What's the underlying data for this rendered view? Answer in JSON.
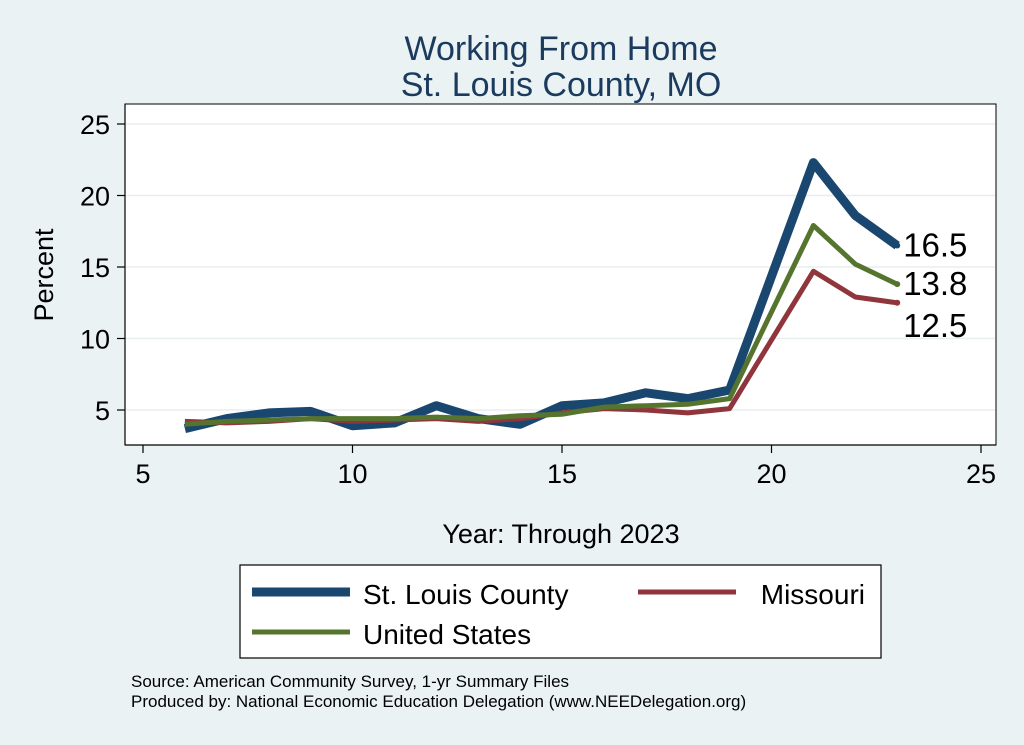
{
  "chart_data": {
    "type": "line",
    "title": "Working From Home",
    "subtitle": "St. Louis County, MO",
    "xlabel": "Year: Through 2023",
    "ylabel": "Percent",
    "xlim": [
      5,
      25
    ],
    "ylim": [
      2.5,
      25
    ],
    "x_ticks": [
      5,
      10,
      15,
      20,
      25
    ],
    "y_ticks": [
      5,
      10,
      15,
      20,
      25
    ],
    "grid": true,
    "legend_position": "bottom",
    "x": [
      6,
      7,
      8,
      9,
      10,
      11,
      12,
      13,
      14,
      15,
      16,
      17,
      18,
      19,
      21,
      22,
      23
    ],
    "series": [
      {
        "name": "St. Louis County",
        "color": "#1a476f",
        "values": [
          3.7,
          4.4,
          4.8,
          4.9,
          3.9,
          4.1,
          5.3,
          4.4,
          4.0,
          5.3,
          5.5,
          6.2,
          5.8,
          6.4,
          22.3,
          18.6,
          16.5
        ],
        "end_label": "16.5"
      },
      {
        "name": "Missouri",
        "color": "#90353b",
        "values": [
          4.2,
          4.1,
          4.2,
          4.4,
          4.2,
          4.3,
          4.4,
          4.2,
          4.4,
          4.8,
          5.1,
          5.0,
          4.8,
          5.1,
          14.7,
          12.9,
          12.5
        ],
        "end_label": "12.5"
      },
      {
        "name": "United States",
        "color": "#55752f",
        "values": [
          4.0,
          4.2,
          4.3,
          4.4,
          4.4,
          4.4,
          4.5,
          4.4,
          4.6,
          4.7,
          5.2,
          5.3,
          5.4,
          5.8,
          17.9,
          15.2,
          13.8
        ],
        "end_label": "13.8"
      }
    ]
  },
  "notes": {
    "source": "Source: American Community Survey, 1-yr Summary Files",
    "produced_by": "Produced by: National Economic Education Delegation (www.NEEDelegation.org)"
  }
}
